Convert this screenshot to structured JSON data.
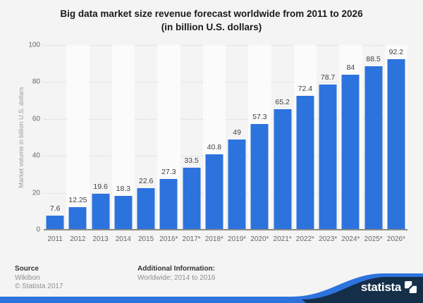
{
  "title": {
    "line1": "Big data market size revenue forecast worldwide from 2011 to 2026",
    "line2": "(in billion U.S. dollars)"
  },
  "chart_data": {
    "type": "bar",
    "title": "Big data market size revenue forecast worldwide from 2011 to 2026 (in billion U.S. dollars)",
    "categories": [
      "2011",
      "2012",
      "2013",
      "2014",
      "2015",
      "2016*",
      "2017*",
      "2018*",
      "2019*",
      "2020*",
      "2021*",
      "2022*",
      "2023*",
      "2024*",
      "2025*",
      "2026*"
    ],
    "values": [
      7.6,
      12.25,
      19.6,
      18.3,
      22.6,
      27.3,
      33.5,
      40.8,
      49,
      57.3,
      65.2,
      72.4,
      78.7,
      84,
      88.5,
      92.2
    ],
    "xlabel": "",
    "ylabel": "Market volume in billion U.S. dollars",
    "ylim": [
      0,
      100
    ],
    "yticks": [
      0,
      20,
      40,
      60,
      80,
      100
    ],
    "grid": "horizontal-dotted",
    "legend": "none",
    "bar_color": "#2d73dd",
    "plot_band_alternate": true
  },
  "footer": {
    "source_label": "Source",
    "source_line1": "Wikibon",
    "source_line2": "© Statista 2017",
    "additional_label": "Additional Information:",
    "additional_line1": "Worldwide; 2014 to 2016"
  },
  "branding": {
    "logo_text": "statista"
  },
  "colors": {
    "accent_blue": "#2d73dd",
    "brand_navy": "#152f49",
    "page_bg": "#f4f4f4",
    "band_light": "#fbfbfb",
    "gridline": "#d4d4d4",
    "axis": "#8a8a8a",
    "title_text": "#1a1a1a",
    "value_text": "#404040",
    "tick_text": "#666666",
    "muted_text": "#8f8f8f"
  }
}
